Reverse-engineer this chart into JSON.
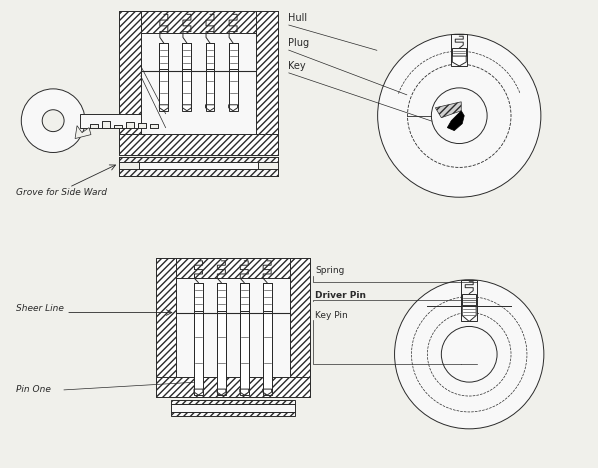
{
  "bg_color": "#f0f0eb",
  "line_color": "#2a2a2a",
  "labels": {
    "hull": "Hull",
    "plug": "Plug",
    "key": "Key",
    "grove": "Grove for Side Ward",
    "spring": "Spring",
    "driver_pin": "Driver Pin",
    "sheer_line": "Sheer Line",
    "pin_one": "Pin One",
    "key_pin": "Key Pin"
  },
  "figsize": [
    5.98,
    4.68
  ],
  "dpi": 100
}
